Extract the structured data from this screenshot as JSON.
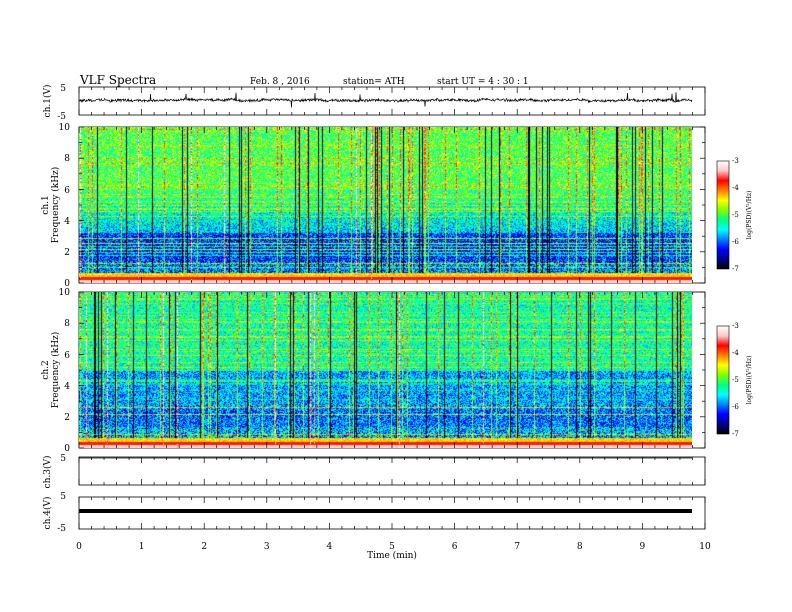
{
  "header": {
    "title": "VLF  Spectra",
    "date": "Feb. 8  , 2016",
    "station": "station= ATH",
    "start": "start  UT  =   4  : 30 : 1"
  },
  "colorbar": {
    "label": "log(PSD)(V²/Hz)",
    "ticks": [
      "-3",
      "-4",
      "-5",
      "-6",
      "-7"
    ],
    "range": [
      -7,
      -3
    ],
    "colors": [
      "#000000",
      "#00008b",
      "#0000ff",
      "#0080ff",
      "#00ffff",
      "#00ff80",
      "#80ff00",
      "#ffff00",
      "#ff8000",
      "#ff0000",
      "#ffc8c8",
      "#ffffff"
    ]
  },
  "chart_data": [
    {
      "type": "line",
      "name": "ch1-waveform",
      "ylabel": "ch.1(V)",
      "ylim": [
        -5,
        5
      ],
      "yticks": [
        "5",
        "-5"
      ],
      "x_range_min": [
        0,
        9.8
      ],
      "baseline_v": 0.3,
      "noise_amplitude_v": 0.8
    },
    {
      "type": "heatmap",
      "name": "ch1-spectrogram",
      "ylabel": [
        "ch.1",
        "Frequency  (kHz)"
      ],
      "ylim": [
        0,
        10
      ],
      "yticks": [
        "0",
        "2",
        "4",
        "6",
        "8",
        "10"
      ],
      "x_range_min": [
        0,
        9.8
      ],
      "log_psd_range": [
        -7,
        -3
      ]
    },
    {
      "type": "heatmap",
      "name": "ch2-spectrogram",
      "ylabel": [
        "ch.2",
        "Frequency  (kHz)"
      ],
      "ylim": [
        0,
        10
      ],
      "yticks": [
        "0",
        "2",
        "4",
        "6",
        "8",
        "10"
      ],
      "x_range_min": [
        0,
        9.8
      ],
      "log_psd_range": [
        -7,
        -3
      ]
    },
    {
      "type": "line",
      "name": "ch3-waveform",
      "ylabel": "ch.3(V)",
      "ylim": [
        -5,
        5
      ],
      "yticks": [
        "5"
      ],
      "x_range_min": [
        0,
        9.8
      ],
      "baseline_v": 5
    },
    {
      "type": "line",
      "name": "ch4-waveform",
      "ylabel": "ch.4(V)",
      "ylim": [
        -5,
        5
      ],
      "yticks": [
        "5",
        "-5"
      ],
      "x_range_min": [
        0,
        9.8
      ],
      "baseline_v": 0
    }
  ],
  "xaxis": {
    "label": "Time  (min)",
    "range": [
      0,
      10
    ],
    "ticks": [
      "0",
      "1",
      "2",
      "3",
      "4",
      "5",
      "6",
      "7",
      "8",
      "9",
      "10"
    ]
  }
}
